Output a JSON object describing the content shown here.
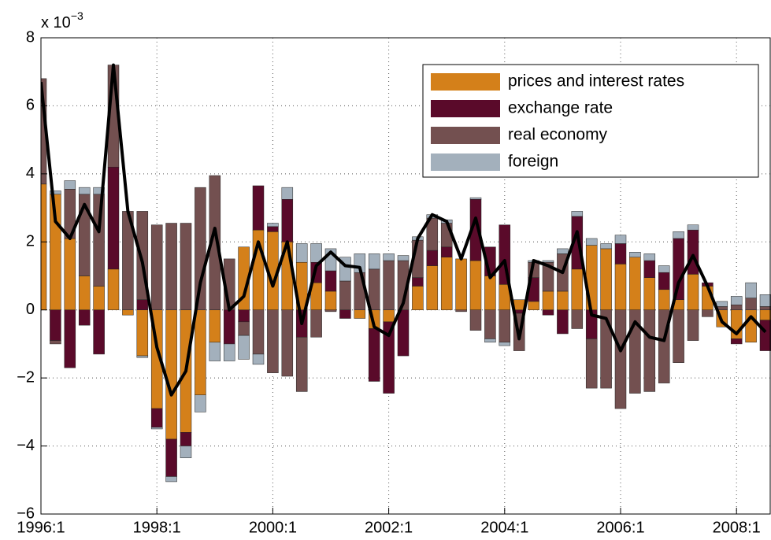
{
  "chart_data": {
    "type": "bar",
    "stacked": true,
    "y_multiplier": "x 10",
    "y_multiplier_exp": "−3",
    "categories": [
      "1996:1",
      null,
      null,
      null,
      null,
      null,
      null,
      null,
      "1998:1",
      null,
      null,
      null,
      null,
      null,
      null,
      null,
      "2000:1",
      null,
      null,
      null,
      null,
      null,
      null,
      null,
      "2002:1",
      null,
      null,
      null,
      null,
      null,
      null,
      null,
      "2004:1",
      null,
      null,
      null,
      null,
      null,
      null,
      null,
      "2006:1",
      null,
      null,
      null,
      null,
      null,
      null,
      null,
      "2008:1",
      null,
      null
    ],
    "ylim": [
      -6,
      8
    ],
    "yticks": [
      {
        "value": -6,
        "label": "−6"
      },
      {
        "value": -4,
        "label": "−4"
      },
      {
        "value": -2,
        "label": "−2"
      },
      0,
      2,
      4,
      6,
      8
    ],
    "grid": true,
    "legend": "upper right",
    "series": [
      {
        "name": "prices and interest rates",
        "color": "#d4801a",
        "values": [
          3.7,
          3.4,
          2.1,
          1.0,
          0.7,
          1.2,
          -0.15,
          -1.35,
          -2.9,
          -3.8,
          -3.6,
          -2.5,
          -0.95,
          0,
          1.85,
          2.35,
          2.3,
          2.0,
          1.4,
          0.8,
          0.55,
          0,
          -0.25,
          -0.55,
          -0.35,
          0,
          0.7,
          1.3,
          1.55,
          1.5,
          1.45,
          1.0,
          0.75,
          0.3,
          0.25,
          0.55,
          0.55,
          1.2,
          1.9,
          1.8,
          1.35,
          1.55,
          0.95,
          0.6,
          0.3,
          1.05,
          0.7,
          -0.5,
          -0.85,
          -0.95,
          -0.3
        ]
      },
      {
        "name": "exchange rate",
        "color": "#5a0a2a",
        "values": [
          0,
          -0.9,
          -1.7,
          -0.45,
          -1.3,
          3.0,
          0,
          0.3,
          -0.55,
          -1.1,
          -0.4,
          0,
          0,
          -1.0,
          -0.35,
          1.3,
          0.15,
          1.25,
          -0.8,
          0.6,
          0.6,
          -0.25,
          0,
          -1.55,
          -2.1,
          -1.35,
          0.25,
          0.45,
          0.3,
          0,
          1.8,
          0.85,
          1.75,
          -0.1,
          0.7,
          -0.15,
          -0.7,
          1.55,
          -0.85,
          0,
          0.6,
          0,
          0.5,
          0.5,
          1.8,
          1.3,
          0.1,
          0,
          -0.15,
          0,
          -0.9
        ]
      },
      {
        "name": "real economy",
        "color": "#735050",
        "values": [
          3.1,
          -0.1,
          1.45,
          2.4,
          2.7,
          3.0,
          2.9,
          2.6,
          2.5,
          2.55,
          2.55,
          3.6,
          3.95,
          1.5,
          -0.4,
          -1.3,
          -1.85,
          -1.95,
          -1.6,
          -0.8,
          -0.05,
          0.85,
          1.1,
          1.2,
          1.45,
          1.45,
          1.1,
          0.95,
          0.7,
          -0.05,
          -0.6,
          -0.85,
          -0.95,
          -1.1,
          0.45,
          0.85,
          1.1,
          -0.55,
          -1.45,
          -2.3,
          -2.9,
          -2.45,
          -2.4,
          -2.15,
          -1.55,
          -0.9,
          -0.2,
          0.1,
          0.15,
          0.35,
          0.1
        ]
      },
      {
        "name": "foreign",
        "color": "#a3b0bc",
        "values": [
          0,
          0.1,
          0.25,
          0.2,
          0.2,
          0,
          0,
          -0.05,
          -0.05,
          -0.15,
          -0.35,
          -0.5,
          -0.55,
          -0.5,
          -0.7,
          -0.3,
          0.1,
          0.35,
          0.55,
          0.55,
          0.65,
          0.7,
          0.55,
          0.45,
          0.2,
          0.15,
          0.1,
          0.1,
          0.1,
          0,
          0.05,
          -0.1,
          -0.1,
          0,
          0.05,
          0.05,
          0.15,
          0.15,
          0.2,
          0.15,
          0.25,
          0.15,
          0.2,
          0.2,
          0.2,
          0.15,
          0,
          0.15,
          0.25,
          0.45,
          0.35
        ]
      }
    ],
    "line": {
      "color": "#000000",
      "values": [
        6.7,
        2.6,
        2.1,
        3.1,
        2.3,
        7.2,
        2.9,
        1.4,
        -1.1,
        -2.5,
        -1.8,
        0.8,
        2.4,
        0.0,
        0.4,
        2.0,
        0.7,
        2.0,
        -0.4,
        1.3,
        1.7,
        1.3,
        1.25,
        -0.5,
        -0.75,
        0.2,
        2.1,
        2.8,
        2.6,
        1.5,
        2.7,
        0.95,
        1.45,
        -0.85,
        1.45,
        1.3,
        1.1,
        2.3,
        -0.15,
        -0.25,
        -1.2,
        -0.35,
        -0.8,
        -0.9,
        0.8,
        1.6,
        0.7,
        -0.35,
        -0.7,
        -0.2,
        -0.65
      ]
    }
  }
}
